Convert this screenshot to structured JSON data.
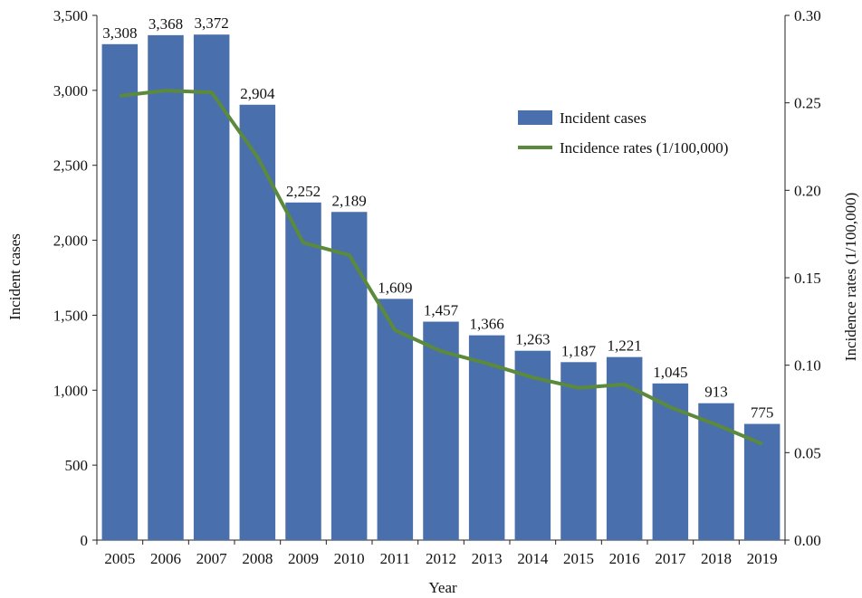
{
  "chart_data": {
    "type": "bar",
    "categories": [
      "2005",
      "2006",
      "2007",
      "2008",
      "2009",
      "2010",
      "2011",
      "2012",
      "2013",
      "2014",
      "2015",
      "2016",
      "2017",
      "2018",
      "2019"
    ],
    "series": [
      {
        "name": "Incident cases",
        "type": "bar",
        "axis": "left",
        "color": "#4a6fad",
        "values": [
          3308,
          3368,
          3372,
          2904,
          2252,
          2189,
          1609,
          1457,
          1366,
          1263,
          1187,
          1221,
          1045,
          913,
          775
        ],
        "labels": [
          "3,308",
          "3,368",
          "3,372",
          "2,904",
          "2,252",
          "2,189",
          "1,609",
          "1,457",
          "1,366",
          "1,263",
          "1,187",
          "1,221",
          "1,045",
          "913",
          "775"
        ]
      },
      {
        "name": "Incidence rates (1/100,000)",
        "type": "line",
        "axis": "right",
        "color": "#5b8a3c",
        "values": [
          0.254,
          0.257,
          0.256,
          0.219,
          0.17,
          0.163,
          0.12,
          0.108,
          0.101,
          0.093,
          0.087,
          0.089,
          0.076,
          0.066,
          0.055
        ]
      }
    ],
    "xlabel": "Year",
    "ylabel": "Incident cases",
    "y2label": "Incidence rates (1/100,000)",
    "ylim": [
      0,
      3500
    ],
    "y2lim": [
      0,
      0.3
    ],
    "yticks": [
      "0",
      "500",
      "1,000",
      "1,500",
      "2,000",
      "2,500",
      "3,000",
      "3,500"
    ],
    "y2ticks": [
      "0.00",
      "0.05",
      "0.10",
      "0.15",
      "0.20",
      "0.25",
      "0.30"
    ],
    "grid": false,
    "legend": "top-right"
  }
}
